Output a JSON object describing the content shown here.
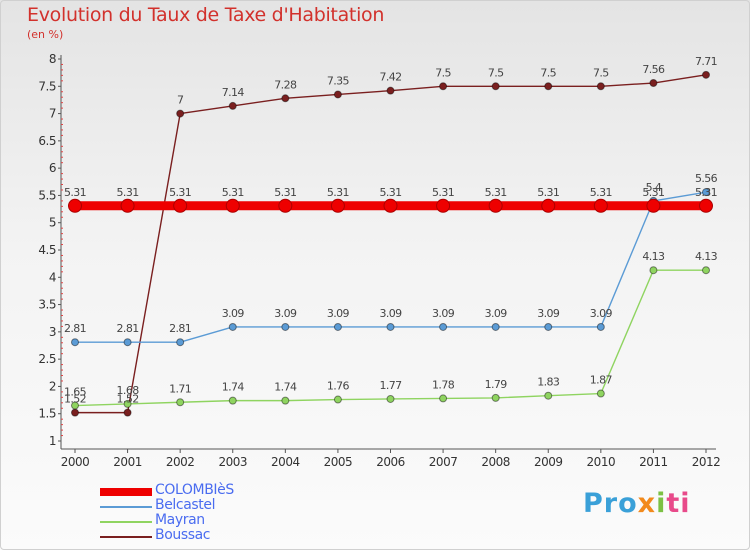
{
  "title": "Evolution du Taux de Taxe d'Habitation",
  "unit": "(en %)",
  "logo_text": [
    "Pro",
    "x",
    "i",
    "ti"
  ],
  "chart_data": {
    "type": "line",
    "x": [
      "2000",
      "2001",
      "2002",
      "2003",
      "2004",
      "2005",
      "2006",
      "2007",
      "2008",
      "2009",
      "2010",
      "2011",
      "2012"
    ],
    "ylim": [
      1,
      8
    ],
    "yticks": [
      "1",
      "1.5",
      "2",
      "2.5",
      "3",
      "3.5",
      "4",
      "4.5",
      "5",
      "5.5",
      "6",
      "6.5",
      "7",
      "7.5",
      "8"
    ],
    "grid": false,
    "legend": "bottom-left",
    "series": [
      {
        "name": "COLOMBIèS",
        "color": "#ee0000",
        "values": [
          5.31,
          5.31,
          5.31,
          5.31,
          5.31,
          5.31,
          5.31,
          5.31,
          5.31,
          5.31,
          5.31,
          5.31,
          5.31
        ],
        "labels": [
          "5.31",
          "5.31",
          "5.31",
          "5.31",
          "5.31",
          "5.31",
          "5.31",
          "5.31",
          "5.31",
          "5.31",
          "5.31",
          "5.31",
          "5.31"
        ]
      },
      {
        "name": "Belcastel",
        "color": "#5b9bd5",
        "values": [
          2.81,
          2.81,
          2.81,
          3.09,
          3.09,
          3.09,
          3.09,
          3.09,
          3.09,
          3.09,
          3.09,
          5.4,
          5.56
        ],
        "labels": [
          "2.81",
          "2.81",
          "2.81",
          "3.09",
          "3.09",
          "3.09",
          "3.09",
          "3.09",
          "3.09",
          "3.09",
          "3.09",
          "5.4",
          "5.56"
        ]
      },
      {
        "name": "Mayran",
        "color": "#8fd460",
        "values": [
          1.65,
          1.68,
          1.71,
          1.74,
          1.74,
          1.76,
          1.77,
          1.78,
          1.79,
          1.83,
          1.87,
          4.13,
          4.13
        ],
        "labels": [
          "1.65",
          "1.68",
          "1.71",
          "1.74",
          "1.74",
          "1.76",
          "1.77",
          "1.78",
          "1.79",
          "1.83",
          "1.87",
          "4.13",
          "4.13"
        ]
      },
      {
        "name": "Boussac",
        "color": "#7a1f1f",
        "values": [
          1.52,
          1.52,
          7,
          7.14,
          7.28,
          7.35,
          7.42,
          7.5,
          7.5,
          7.5,
          7.5,
          7.56,
          7.71
        ],
        "labels": [
          "1.52",
          "1.52",
          "7",
          "7.14",
          "7.28",
          "7.35",
          "7.42",
          "7.5",
          "7.5",
          "7.5",
          "7.5",
          "7.56",
          "7.71"
        ]
      }
    ]
  }
}
